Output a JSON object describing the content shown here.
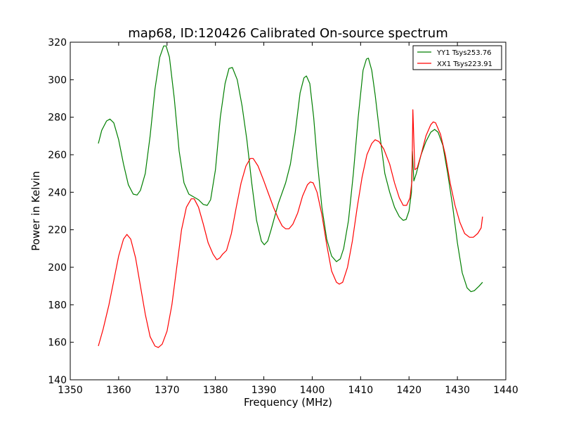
{
  "chart_data": {
    "type": "line",
    "title": "map68, ID:120426 Calibrated On-source spectrum",
    "xlabel": "Frequency (MHz)",
    "ylabel": "Power in Kelvin",
    "xlim": [
      1350,
      1440
    ],
    "ylim": [
      140,
      320
    ],
    "xticks": [
      1350,
      1360,
      1370,
      1380,
      1390,
      1400,
      1410,
      1420,
      1430,
      1440
    ],
    "yticks": [
      140,
      160,
      180,
      200,
      220,
      240,
      260,
      280,
      300,
      320
    ],
    "grid": false,
    "legend_position": "top-right",
    "series": [
      {
        "name": "YY1 Tsys253.76",
        "color": "#007f00",
        "points": [
          [
            1355.8,
            266
          ],
          [
            1356.5,
            273
          ],
          [
            1357.5,
            278
          ],
          [
            1358.2,
            279
          ],
          [
            1359,
            277
          ],
          [
            1360,
            268
          ],
          [
            1361,
            255
          ],
          [
            1362,
            244
          ],
          [
            1363,
            239
          ],
          [
            1363.8,
            238.5
          ],
          [
            1364.5,
            241
          ],
          [
            1365.5,
            250
          ],
          [
            1366.5,
            270
          ],
          [
            1367.5,
            295
          ],
          [
            1368.5,
            312
          ],
          [
            1369.3,
            318
          ],
          [
            1369.8,
            318
          ],
          [
            1370.5,
            312
          ],
          [
            1371.5,
            290
          ],
          [
            1372.5,
            262
          ],
          [
            1373.5,
            245
          ],
          [
            1374.5,
            239
          ],
          [
            1375.5,
            237.5
          ],
          [
            1376.5,
            236
          ],
          [
            1377.5,
            233.5
          ],
          [
            1378.3,
            233
          ],
          [
            1379,
            236
          ],
          [
            1380,
            252
          ],
          [
            1381,
            280
          ],
          [
            1382,
            298
          ],
          [
            1382.8,
            306
          ],
          [
            1383.5,
            306.5
          ],
          [
            1384.5,
            300
          ],
          [
            1385.5,
            286
          ],
          [
            1386.5,
            268
          ],
          [
            1387.5,
            245
          ],
          [
            1388.5,
            225
          ],
          [
            1389.5,
            214
          ],
          [
            1390.1,
            212
          ],
          [
            1390.8,
            214
          ],
          [
            1391.5,
            220
          ],
          [
            1393,
            234
          ],
          [
            1394.5,
            245
          ],
          [
            1395.5,
            255
          ],
          [
            1396.5,
            272
          ],
          [
            1397.5,
            293
          ],
          [
            1398.3,
            301
          ],
          [
            1398.8,
            302
          ],
          [
            1399.5,
            298
          ],
          [
            1400.3,
            280
          ],
          [
            1401,
            258
          ],
          [
            1402,
            232
          ],
          [
            1403,
            215
          ],
          [
            1404,
            206
          ],
          [
            1405,
            203
          ],
          [
            1405.8,
            204.5
          ],
          [
            1406.5,
            210
          ],
          [
            1407.5,
            225
          ],
          [
            1408.5,
            250
          ],
          [
            1409.5,
            280
          ],
          [
            1410.5,
            305
          ],
          [
            1411.2,
            311
          ],
          [
            1411.6,
            311.5
          ],
          [
            1412.3,
            305
          ],
          [
            1413,
            292
          ],
          [
            1414,
            270
          ],
          [
            1415,
            250
          ],
          [
            1416,
            240
          ],
          [
            1417,
            232
          ],
          [
            1418,
            227
          ],
          [
            1418.8,
            225
          ],
          [
            1419.4,
            225.5
          ],
          [
            1420,
            230
          ],
          [
            1420.5,
            240
          ],
          [
            1420.7,
            262
          ],
          [
            1421,
            246
          ],
          [
            1421.5,
            250
          ],
          [
            1422.5,
            260
          ],
          [
            1423.5,
            267
          ],
          [
            1424.5,
            272
          ],
          [
            1425.3,
            273.5
          ],
          [
            1426,
            272
          ],
          [
            1427,
            265
          ],
          [
            1428,
            250
          ],
          [
            1429,
            233
          ],
          [
            1430,
            213
          ],
          [
            1431,
            197
          ],
          [
            1432,
            189
          ],
          [
            1432.8,
            187
          ],
          [
            1433.5,
            187.5
          ],
          [
            1434.5,
            190
          ],
          [
            1435.2,
            192
          ]
        ]
      },
      {
        "name": "XX1 Tsys223.91",
        "color": "#ff0000",
        "points": [
          [
            1355.8,
            158
          ],
          [
            1356.8,
            167
          ],
          [
            1358,
            180
          ],
          [
            1359,
            193
          ],
          [
            1360,
            206
          ],
          [
            1361,
            215
          ],
          [
            1361.7,
            217.5
          ],
          [
            1362.5,
            215
          ],
          [
            1363.5,
            205
          ],
          [
            1364.5,
            190
          ],
          [
            1365.5,
            175
          ],
          [
            1366.5,
            163
          ],
          [
            1367.5,
            158
          ],
          [
            1368.2,
            157.2
          ],
          [
            1369,
            159
          ],
          [
            1370,
            166
          ],
          [
            1371,
            180
          ],
          [
            1372,
            200
          ],
          [
            1373,
            220
          ],
          [
            1374,
            232
          ],
          [
            1375,
            236.5
          ],
          [
            1375.6,
            236.5
          ],
          [
            1376.5,
            232
          ],
          [
            1377.5,
            223
          ],
          [
            1378.5,
            213
          ],
          [
            1379.5,
            207
          ],
          [
            1380.3,
            204
          ],
          [
            1380.9,
            205
          ],
          [
            1381.5,
            207
          ],
          [
            1382.3,
            209
          ],
          [
            1383.3,
            218
          ],
          [
            1384.3,
            232
          ],
          [
            1385.3,
            245
          ],
          [
            1386.3,
            254
          ],
          [
            1387.2,
            258
          ],
          [
            1387.8,
            258
          ],
          [
            1388.8,
            254
          ],
          [
            1390,
            246
          ],
          [
            1391,
            239
          ],
          [
            1392,
            232
          ],
          [
            1393,
            226
          ],
          [
            1393.8,
            222
          ],
          [
            1394.5,
            220.5
          ],
          [
            1395.2,
            220.5
          ],
          [
            1396,
            223
          ],
          [
            1397,
            229
          ],
          [
            1398,
            238
          ],
          [
            1399,
            244
          ],
          [
            1399.6,
            245.5
          ],
          [
            1400.2,
            245
          ],
          [
            1401,
            240
          ],
          [
            1402,
            228
          ],
          [
            1403,
            212
          ],
          [
            1404,
            198
          ],
          [
            1405,
            192
          ],
          [
            1405.6,
            191
          ],
          [
            1406.3,
            192
          ],
          [
            1407.3,
            200
          ],
          [
            1408.3,
            214
          ],
          [
            1409.3,
            232
          ],
          [
            1410.3,
            248
          ],
          [
            1411.3,
            260
          ],
          [
            1412.3,
            266
          ],
          [
            1413,
            268
          ],
          [
            1413.8,
            267
          ],
          [
            1414.8,
            263
          ],
          [
            1416,
            255
          ],
          [
            1417,
            245
          ],
          [
            1418,
            237
          ],
          [
            1418.8,
            233
          ],
          [
            1419.5,
            233
          ],
          [
            1420.2,
            237
          ],
          [
            1420.6,
            246
          ],
          [
            1420.8,
            284
          ],
          [
            1421.2,
            252
          ],
          [
            1421.7,
            253
          ],
          [
            1422.5,
            260
          ],
          [
            1423.5,
            270
          ],
          [
            1424.5,
            276
          ],
          [
            1425,
            277.5
          ],
          [
            1425.5,
            277
          ],
          [
            1426.5,
            271
          ],
          [
            1427.5,
            260
          ],
          [
            1428.5,
            245
          ],
          [
            1429.5,
            233
          ],
          [
            1430.5,
            224
          ],
          [
            1431.5,
            218
          ],
          [
            1432.5,
            216
          ],
          [
            1433.3,
            216
          ],
          [
            1434.2,
            218
          ],
          [
            1434.9,
            221
          ],
          [
            1435.2,
            227
          ]
        ]
      }
    ]
  }
}
